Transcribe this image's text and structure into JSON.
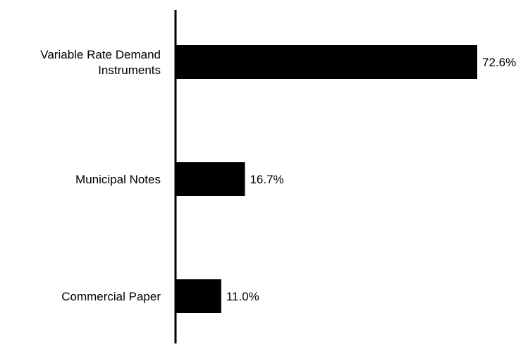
{
  "chart_data": {
    "type": "bar",
    "orientation": "horizontal",
    "categories": [
      [
        "Variable Rate Demand",
        "Instruments"
      ],
      [
        "Municipal Notes"
      ],
      [
        "Commercial Paper"
      ]
    ],
    "values": [
      72.6,
      16.7,
      11.0
    ],
    "value_labels": [
      "72.6%",
      "16.7%",
      "11.0%"
    ],
    "xlim": [
      0,
      100
    ],
    "grid": false,
    "legend": "none",
    "bar_color": "#000000",
    "axis_color": "#000000",
    "text_color": "#000000"
  }
}
